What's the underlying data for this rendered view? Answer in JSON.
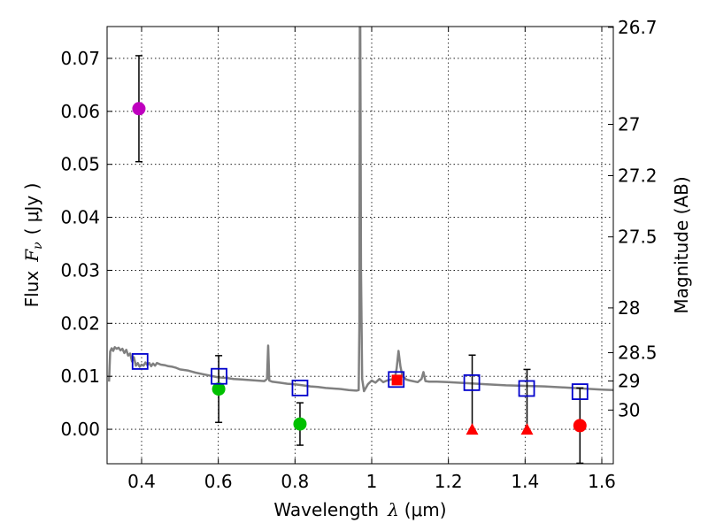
{
  "chart_data": {
    "type": "scatter",
    "xlabel": "Wavelength",
    "xlabel_symbol": "λ",
    "xlabel_unit": "(μm)",
    "ylabel": "Flux",
    "ylabel_symbol": "F",
    "ylabel_subscript": "ν",
    "ylabel_unit": "( μJy )",
    "y2label": "Magnitude (AB)",
    "xlim": [
      0.31,
      1.63
    ],
    "ylim": [
      -0.0065,
      0.076
    ],
    "grid": true,
    "x_ticks": [
      0.4,
      0.6,
      0.8,
      1.0,
      1.2,
      1.4,
      1.6
    ],
    "x_tick_labels": [
      "0.4",
      "0.6",
      "0.8",
      "1",
      "1.2",
      "1.4",
      "1.6"
    ],
    "y_ticks": [
      0.0,
      0.01,
      0.02,
      0.03,
      0.04,
      0.05,
      0.06,
      0.07
    ],
    "y_tick_labels": [
      "0.00",
      "0.01",
      "0.02",
      "0.03",
      "0.04",
      "0.05",
      "0.06",
      "0.07"
    ],
    "magnitude_ticks": [
      {
        "mag": 26.7,
        "label": "26.7"
      },
      {
        "mag": 27.0,
        "label": "27"
      },
      {
        "mag": 27.2,
        "label": "27.2"
      },
      {
        "mag": 27.5,
        "label": "27.5"
      },
      {
        "mag": 28.0,
        "label": "28"
      },
      {
        "mag": 28.5,
        "label": "28.5"
      },
      {
        "mag": 29.0,
        "label": "29"
      },
      {
        "mag": 30.0,
        "label": "30"
      }
    ],
    "series": [
      {
        "name": "model_spectrum",
        "type": "line",
        "color": "#808080",
        "x": [
          0.315,
          0.318,
          0.322,
          0.326,
          0.33,
          0.335,
          0.34,
          0.345,
          0.35,
          0.355,
          0.36,
          0.365,
          0.37,
          0.375,
          0.38,
          0.385,
          0.39,
          0.395,
          0.4,
          0.405,
          0.41,
          0.415,
          0.42,
          0.425,
          0.43,
          0.435,
          0.44,
          0.45,
          0.46,
          0.47,
          0.48,
          0.49,
          0.5,
          0.52,
          0.54,
          0.56,
          0.58,
          0.6,
          0.62,
          0.64,
          0.66,
          0.68,
          0.7,
          0.72,
          0.727,
          0.73,
          0.733,
          0.74,
          0.76,
          0.78,
          0.8,
          0.82,
          0.84,
          0.86,
          0.88,
          0.9,
          0.92,
          0.94,
          0.96,
          0.966,
          0.968,
          0.969,
          0.97,
          0.971,
          0.972,
          0.975,
          0.98,
          0.99,
          1.0,
          1.01,
          1.02,
          1.03,
          1.04,
          1.05,
          1.06,
          1.065,
          1.07,
          1.075,
          1.08,
          1.09,
          1.1,
          1.12,
          1.13,
          1.135,
          1.14,
          1.15,
          1.17,
          1.2,
          1.25,
          1.3,
          1.35,
          1.4,
          1.45,
          1.5,
          1.55,
          1.6,
          1.63
        ],
        "y": [
          0.009,
          0.0147,
          0.0153,
          0.0148,
          0.0155,
          0.0152,
          0.0154,
          0.0149,
          0.0152,
          0.0144,
          0.015,
          0.0139,
          0.0143,
          0.0128,
          0.0136,
          0.012,
          0.0125,
          0.0118,
          0.0122,
          0.012,
          0.0126,
          0.0121,
          0.0125,
          0.0119,
          0.0124,
          0.012,
          0.0125,
          0.0122,
          0.0121,
          0.0119,
          0.0118,
          0.0116,
          0.0113,
          0.0111,
          0.0107,
          0.0104,
          0.0101,
          0.0098,
          0.0097,
          0.0095,
          0.0094,
          0.0093,
          0.0092,
          0.0091,
          0.0095,
          0.0158,
          0.0092,
          0.009,
          0.0088,
          0.0086,
          0.0085,
          0.0083,
          0.0081,
          0.008,
          0.0078,
          0.0077,
          0.0076,
          0.0074,
          0.0073,
          0.0074,
          0.02,
          0.078,
          0.079,
          0.06,
          0.03,
          0.0095,
          0.0072,
          0.0085,
          0.0092,
          0.0088,
          0.0095,
          0.0089,
          0.0092,
          0.0094,
          0.0095,
          0.0115,
          0.0148,
          0.0118,
          0.0101,
          0.0094,
          0.0092,
          0.0089,
          0.0095,
          0.0108,
          0.0091,
          0.009,
          0.009,
          0.0089,
          0.0087,
          0.0085,
          0.0083,
          0.0082,
          0.0081,
          0.0079,
          0.0077,
          0.0075,
          0.0074
        ]
      },
      {
        "name": "filled_circles",
        "type": "scatter",
        "marker": "circle",
        "points": [
          {
            "x": 0.393,
            "y": 0.0605,
            "err": 0.01,
            "color": "#bf00bf"
          },
          {
            "x": 0.601,
            "y": 0.0076,
            "err": 0.0063,
            "color": "#00c000"
          },
          {
            "x": 0.813,
            "y": 0.001,
            "err": 0.004,
            "color": "#00c000"
          },
          {
            "x": 1.543,
            "y": 0.0007,
            "err": 0.0071,
            "color": "#ff0000"
          }
        ]
      },
      {
        "name": "triangles",
        "type": "scatter",
        "marker": "triangle",
        "color": "#ff0000",
        "points": [
          {
            "x": 1.262,
            "y": 0.0,
            "err_up": 0.014
          },
          {
            "x": 1.405,
            "y": 0.0,
            "err_up": 0.0113
          }
        ]
      },
      {
        "name": "small_square",
        "type": "scatter",
        "marker": "square-small",
        "color": "#ff0000",
        "points": [
          {
            "x": 1.066,
            "y": 0.0093
          }
        ]
      },
      {
        "name": "model_boxes",
        "type": "scatter",
        "marker": "square-open",
        "color": "#0000cc",
        "points": [
          {
            "x": 0.396,
            "y": 0.0128
          },
          {
            "x": 0.602,
            "y": 0.01
          },
          {
            "x": 0.813,
            "y": 0.0078
          },
          {
            "x": 1.064,
            "y": 0.0094
          },
          {
            "x": 1.261,
            "y": 0.0088
          },
          {
            "x": 1.404,
            "y": 0.0077
          },
          {
            "x": 1.543,
            "y": 0.0071
          }
        ]
      }
    ]
  }
}
